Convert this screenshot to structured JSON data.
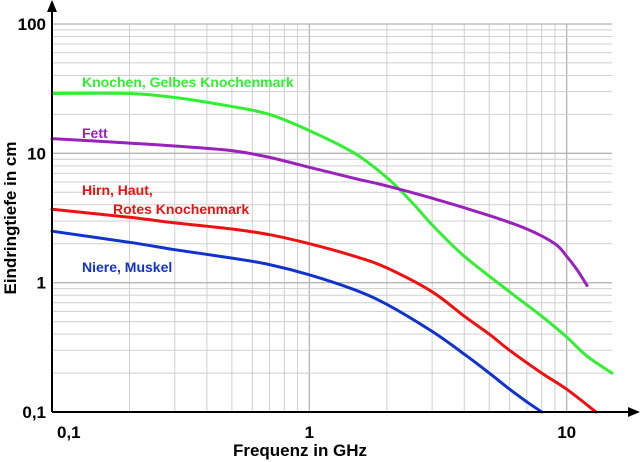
{
  "chart_data": {
    "type": "line",
    "xlabel": "Frequenz in GHz",
    "ylabel": "Eindringtiefe in cm",
    "xscale": "log",
    "yscale": "log",
    "xlim": [
      0.1,
      15
    ],
    "ylim": [
      0.1,
      100
    ],
    "grid": true,
    "legend": "inline labels next to curves",
    "x_ticks": [
      {
        "value": 0.1,
        "label": "0,1"
      },
      {
        "value": 1,
        "label": "1"
      },
      {
        "value": 10,
        "label": "10"
      }
    ],
    "y_ticks": [
      {
        "value": 0.1,
        "label": "0,1"
      },
      {
        "value": 1,
        "label": "1"
      },
      {
        "value": 10,
        "label": "10"
      },
      {
        "value": 100,
        "label": "100"
      }
    ],
    "series": [
      {
        "name": "Knochen, Gelbes Knochenmark",
        "color": "#33ee33",
        "points": [
          [
            0.1,
            29
          ],
          [
            0.2,
            29
          ],
          [
            0.3,
            27
          ],
          [
            0.5,
            23
          ],
          [
            0.7,
            20
          ],
          [
            1,
            15
          ],
          [
            1.5,
            10
          ],
          [
            2,
            6.5
          ],
          [
            2.5,
            4.2
          ],
          [
            3,
            2.8
          ],
          [
            4,
            1.6
          ],
          [
            6,
            0.85
          ],
          [
            8,
            0.55
          ],
          [
            10,
            0.38
          ],
          [
            12,
            0.27
          ],
          [
            15,
            0.2
          ]
        ]
      },
      {
        "name": "Fett",
        "color": "#9922bb",
        "points": [
          [
            0.1,
            13
          ],
          [
            0.2,
            12
          ],
          [
            0.3,
            11.4
          ],
          [
            0.5,
            10.5
          ],
          [
            0.7,
            9.3
          ],
          [
            1,
            7.8
          ],
          [
            1.5,
            6.4
          ],
          [
            2,
            5.6
          ],
          [
            3,
            4.5
          ],
          [
            5,
            3.3
          ],
          [
            7,
            2.6
          ],
          [
            9,
            2
          ],
          [
            10,
            1.6
          ],
          [
            11,
            1.25
          ],
          [
            12,
            0.95
          ]
        ]
      },
      {
        "name": "Hirn, Haut,\nRotes Knochenmark",
        "label_lines": [
          "Hirn, Haut,",
          "Rotes Knochenmark"
        ],
        "color": "#ee1111",
        "points": [
          [
            0.1,
            3.7
          ],
          [
            0.2,
            3.2
          ],
          [
            0.3,
            2.9
          ],
          [
            0.5,
            2.6
          ],
          [
            0.7,
            2.35
          ],
          [
            1,
            2
          ],
          [
            1.5,
            1.6
          ],
          [
            2,
            1.3
          ],
          [
            3,
            0.85
          ],
          [
            4,
            0.55
          ],
          [
            5,
            0.4
          ],
          [
            6,
            0.3
          ],
          [
            8,
            0.2
          ],
          [
            10,
            0.15
          ],
          [
            13,
            0.1
          ]
        ]
      },
      {
        "name": "Niere, Muskel",
        "color": "#1133cc",
        "points": [
          [
            0.1,
            2.5
          ],
          [
            0.2,
            2.05
          ],
          [
            0.3,
            1.8
          ],
          [
            0.5,
            1.55
          ],
          [
            0.7,
            1.38
          ],
          [
            1,
            1.15
          ],
          [
            1.5,
            0.88
          ],
          [
            2,
            0.68
          ],
          [
            3,
            0.42
          ],
          [
            4,
            0.28
          ],
          [
            5,
            0.2
          ],
          [
            6,
            0.15
          ],
          [
            7,
            0.12
          ],
          [
            8,
            0.1
          ]
        ]
      }
    ]
  }
}
